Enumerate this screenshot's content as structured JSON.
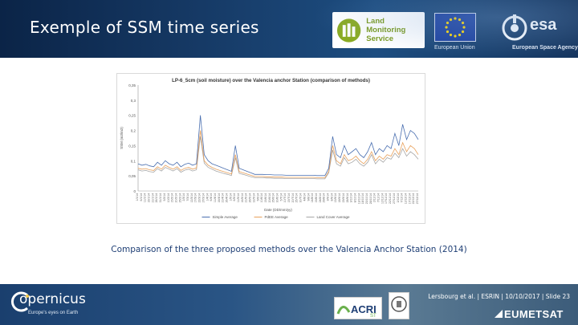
{
  "header": {
    "title": "Exemple of SSM time series",
    "lms_logo": {
      "line1": "Land Monitoring",
      "line2": "Service",
      "color": "#7a9a1c"
    },
    "eu_logo": {
      "caption": "European Union",
      "flag_color": "#1b3f9e",
      "star_color": "#ffd700"
    },
    "esa_logo": {
      "name": "esa",
      "caption": "European Space Agency"
    }
  },
  "chart_data": {
    "type": "line",
    "title": "LP-6_5cm (soil moisture) over the Valencia anchor Station (comparison of methods)",
    "xlabel": "Date (DD/mm/yy)",
    "ylabel": "SSM (m3/m3)",
    "ylim": [
      0,
      0.35
    ],
    "yticks": [
      "0",
      "0,05",
      "0,1",
      "0,15",
      "0,2",
      "0,25",
      "0,3",
      "0,35"
    ],
    "x": [
      "1/1/14",
      "6/1/14",
      "11/1/14",
      "16/1/14",
      "21/1/14",
      "26/1/14",
      "31/1/14",
      "5/2/14",
      "10/2/14",
      "15/2/14",
      "20/2/14",
      "25/2/14",
      "2/3/14",
      "7/3/14",
      "12/3/14",
      "17/3/14",
      "22/3/14",
      "27/3/14",
      "1/4/14",
      "6/4/14",
      "11/4/14",
      "16/4/14",
      "21/4/14",
      "26/4/14",
      "1/5/14",
      "6/5/14",
      "11/5/14",
      "16/5/14",
      "21/5/14",
      "26/5/14",
      "31/5/14",
      "5/6/14",
      "10/6/14",
      "15/6/14",
      "20/6/14",
      "25/6/14",
      "30/6/14",
      "5/7/14",
      "10/7/14",
      "15/7/14",
      "20/7/14",
      "25/7/14",
      "30/7/14",
      "4/8/14",
      "9/8/14",
      "14/8/14",
      "19/8/14",
      "24/8/14",
      "29/8/14",
      "3/9/14",
      "8/9/14",
      "13/9/14",
      "18/9/14",
      "23/9/14",
      "28/9/14",
      "3/10/14",
      "8/10/14",
      "13/10/14",
      "18/10/14",
      "23/10/14",
      "28/10/14",
      "2/11/14",
      "7/11/14",
      "12/11/14",
      "17/11/14",
      "22/11/14",
      "27/11/14",
      "2/12/14",
      "7/12/14",
      "12/12/14",
      "17/12/14",
      "22/12/14",
      "27/12/14"
    ],
    "series": [
      {
        "name": "Simple Average",
        "color": "#4a6fb0",
        "values": [
          0.09,
          0.085,
          0.088,
          0.083,
          0.08,
          0.095,
          0.085,
          0.1,
          0.09,
          0.085,
          0.095,
          0.08,
          0.088,
          0.092,
          0.085,
          0.09,
          0.25,
          0.12,
          0.1,
          0.09,
          0.085,
          0.08,
          0.075,
          0.07,
          0.065,
          0.15,
          0.075,
          0.07,
          0.065,
          0.06,
          0.055,
          0.055,
          0.055,
          0.054,
          0.054,
          0.053,
          0.053,
          0.053,
          0.052,
          0.052,
          0.052,
          0.052,
          0.052,
          0.052,
          0.052,
          0.052,
          0.051,
          0.051,
          0.051,
          0.075,
          0.18,
          0.12,
          0.11,
          0.15,
          0.12,
          0.13,
          0.14,
          0.12,
          0.11,
          0.13,
          0.16,
          0.12,
          0.14,
          0.13,
          0.15,
          0.14,
          0.19,
          0.15,
          0.22,
          0.17,
          0.2,
          0.19,
          0.17
        ]
      },
      {
        "name": "PdEE Average",
        "color": "#e8a15c",
        "values": [
          0.075,
          0.072,
          0.074,
          0.07,
          0.068,
          0.08,
          0.072,
          0.085,
          0.078,
          0.072,
          0.08,
          0.068,
          0.075,
          0.078,
          0.072,
          0.076,
          0.2,
          0.1,
          0.085,
          0.078,
          0.072,
          0.068,
          0.064,
          0.06,
          0.056,
          0.12,
          0.064,
          0.06,
          0.056,
          0.052,
          0.048,
          0.048,
          0.048,
          0.047,
          0.047,
          0.046,
          0.046,
          0.046,
          0.045,
          0.045,
          0.045,
          0.045,
          0.045,
          0.045,
          0.045,
          0.045,
          0.044,
          0.044,
          0.044,
          0.065,
          0.15,
          0.1,
          0.09,
          0.12,
          0.1,
          0.105,
          0.115,
          0.1,
          0.09,
          0.105,
          0.13,
          0.1,
          0.115,
          0.105,
          0.12,
          0.115,
          0.14,
          0.12,
          0.16,
          0.13,
          0.15,
          0.14,
          0.12
        ]
      },
      {
        "name": "Land Cover Average",
        "color": "#a6a6a6",
        "values": [
          0.07,
          0.066,
          0.068,
          0.064,
          0.062,
          0.074,
          0.066,
          0.078,
          0.072,
          0.066,
          0.074,
          0.062,
          0.069,
          0.072,
          0.066,
          0.07,
          0.18,
          0.092,
          0.078,
          0.072,
          0.066,
          0.062,
          0.058,
          0.055,
          0.051,
          0.11,
          0.058,
          0.055,
          0.051,
          0.047,
          0.044,
          0.044,
          0.044,
          0.043,
          0.043,
          0.042,
          0.042,
          0.042,
          0.041,
          0.041,
          0.041,
          0.041,
          0.041,
          0.041,
          0.041,
          0.041,
          0.04,
          0.04,
          0.04,
          0.06,
          0.135,
          0.09,
          0.082,
          0.11,
          0.09,
          0.095,
          0.105,
          0.09,
          0.082,
          0.095,
          0.12,
          0.09,
          0.105,
          0.095,
          0.11,
          0.105,
          0.125,
          0.11,
          0.14,
          0.115,
          0.13,
          0.12,
          0.105
        ]
      }
    ],
    "legend": "bottom",
    "grid": false
  },
  "caption": "Comparison of the three proposed methods over the Valencia Anchor Station (2014)",
  "footer": {
    "copernicus_name": "opernicus",
    "copernicus_tag": "Europe's eyes on Earth",
    "reference": "Lersbourg et al. | ESRIN | 10/10/2017 | Slide 23",
    "acri_logo": "ACRI",
    "acri_sub": "ST",
    "eumetsat": "EUMETSAT"
  }
}
